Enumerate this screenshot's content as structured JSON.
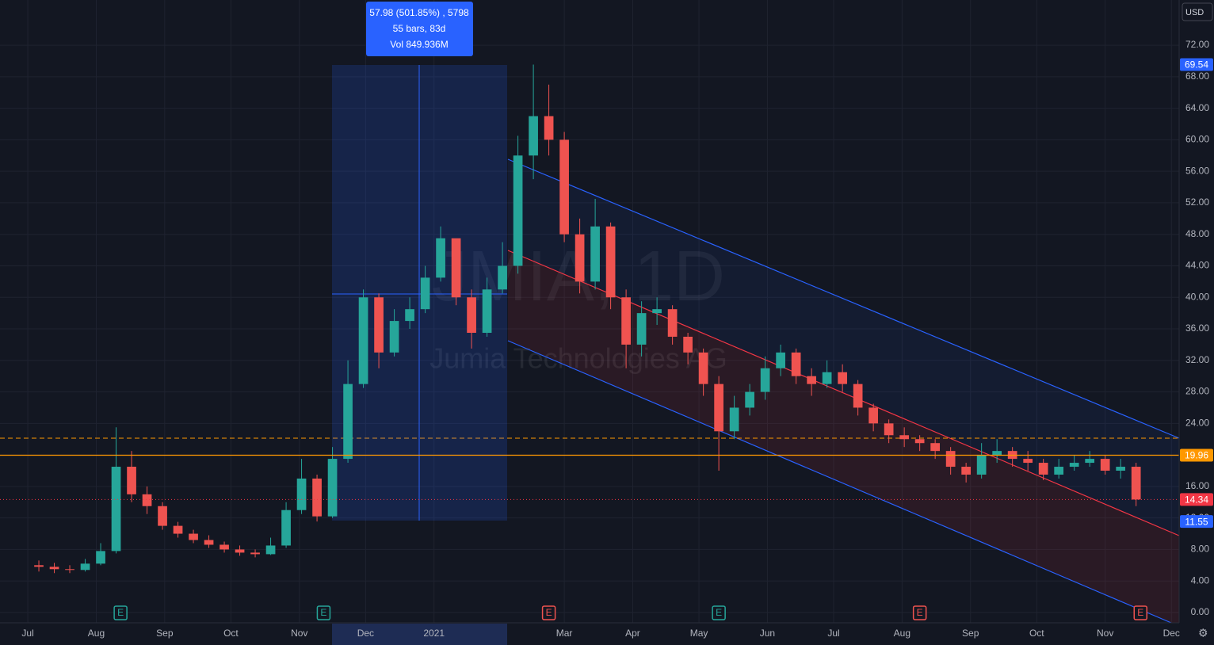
{
  "chart_data": {
    "type": "candlestick",
    "title": "JMIA, 1D",
    "subtitle": "Jumia Technologies AG",
    "currency": "USD",
    "x": [
      5,
      12,
      19,
      26,
      33,
      40,
      47,
      54,
      61,
      68,
      75,
      82,
      89,
      96,
      103,
      110,
      117,
      124,
      131,
      138,
      145,
      152,
      159,
      166,
      173,
      180,
      187,
      194,
      201,
      208,
      215,
      222,
      229,
      236,
      243,
      250,
      257,
      264,
      271,
      278,
      285,
      292,
      299,
      306,
      313,
      320,
      327,
      334,
      341,
      348,
      355,
      362,
      369,
      376,
      383,
      390,
      397,
      404,
      411,
      418,
      425,
      432,
      439,
      446,
      453,
      460,
      467,
      474,
      481,
      488,
      495,
      502
    ],
    "open": [
      6.0,
      5.8,
      5.5,
      5.4,
      6.2,
      7.8,
      18.5,
      15.0,
      13.5,
      11.0,
      10.0,
      9.2,
      8.6,
      8.0,
      7.6,
      7.4,
      8.5,
      13.0,
      17.0,
      12.2,
      19.5,
      29.0,
      40.0,
      33.0,
      37.0,
      38.5,
      42.5,
      47.5,
      40.0,
      35.5,
      41.0,
      44.0,
      58.0,
      63.0,
      60.0,
      48.0,
      42.0,
      49.0,
      40.0,
      34.0,
      38.0,
      38.5,
      35.0,
      33.0,
      29.0,
      23.0,
      26.0,
      28.0,
      31.0,
      33.0,
      30.0,
      29.0,
      30.5,
      29.0,
      26.0,
      24.0,
      22.5,
      22.0,
      21.5,
      20.5,
      18.5,
      17.5,
      20.0,
      20.5,
      19.5,
      19.0,
      17.5,
      18.5,
      19.0,
      19.5,
      18.0,
      18.5
    ],
    "high": [
      6.6,
      6.3,
      6.0,
      6.8,
      8.8,
      23.5,
      20.5,
      16.0,
      14.0,
      11.5,
      10.5,
      9.8,
      9.0,
      8.5,
      8.0,
      9.5,
      14.0,
      19.5,
      17.5,
      21.0,
      32.0,
      41.0,
      40.5,
      38.5,
      40.0,
      44.0,
      49.0,
      47.0,
      41.0,
      42.5,
      47.0,
      60.5,
      69.54,
      67.0,
      61.0,
      50.0,
      52.5,
      49.5,
      41.0,
      39.5,
      40.0,
      39.0,
      35.5,
      33.5,
      30.0,
      27.5,
      29.0,
      32.5,
      34.0,
      33.5,
      31.0,
      32.0,
      31.5,
      29.5,
      26.5,
      24.5,
      23.5,
      22.5,
      22.0,
      21.0,
      19.0,
      21.5,
      22.0,
      21.0,
      20.5,
      19.5,
      19.5,
      20.0,
      20.5,
      20.0,
      19.5,
      19.0
    ],
    "low": [
      5.2,
      5.0,
      5.0,
      5.2,
      6.0,
      7.5,
      14.0,
      12.5,
      10.5,
      9.5,
      8.8,
      8.2,
      7.6,
      7.2,
      7.0,
      7.3,
      8.2,
      12.5,
      11.55,
      12.0,
      19.0,
      28.5,
      31.0,
      32.5,
      36.0,
      38.0,
      42.0,
      39.0,
      33.5,
      35.0,
      40.5,
      43.0,
      55.0,
      58.0,
      47.0,
      40.5,
      41.0,
      38.5,
      31.0,
      32.5,
      36.5,
      34.0,
      31.5,
      27.5,
      18.0,
      22.0,
      25.0,
      27.0,
      30.0,
      29.0,
      27.5,
      28.5,
      28.0,
      25.0,
      23.0,
      21.5,
      21.0,
      20.5,
      19.5,
      17.5,
      16.5,
      17.0,
      19.0,
      18.5,
      18.0,
      16.8,
      17.0,
      18.0,
      18.5,
      17.5,
      17.0,
      13.5
    ],
    "close": [
      5.8,
      5.5,
      5.4,
      6.2,
      7.8,
      18.5,
      15.0,
      13.5,
      11.0,
      10.0,
      9.2,
      8.6,
      8.0,
      7.6,
      7.4,
      8.5,
      13.0,
      17.0,
      12.2,
      19.5,
      29.0,
      40.0,
      33.0,
      37.0,
      38.5,
      42.5,
      47.5,
      40.0,
      35.5,
      41.0,
      44.0,
      58.0,
      63.0,
      60.0,
      48.0,
      42.0,
      49.0,
      40.0,
      34.0,
      38.0,
      38.5,
      35.0,
      33.0,
      29.0,
      23.0,
      26.0,
      28.0,
      31.0,
      33.0,
      30.0,
      29.0,
      30.5,
      29.0,
      26.0,
      24.0,
      22.5,
      22.0,
      21.5,
      20.5,
      18.5,
      17.5,
      20.0,
      20.5,
      19.5,
      19.0,
      17.5,
      18.5,
      19.0,
      19.5,
      18.0,
      18.5,
      14.34
    ],
    "up_color": "#26a69a",
    "down_color": "#ef5350",
    "xlim": [
      -12.6,
      521.5
    ],
    "xticks": [
      {
        "value": 0,
        "label": "Jul"
      },
      {
        "value": 31,
        "label": "Aug"
      },
      {
        "value": 62,
        "label": "Sep"
      },
      {
        "value": 92,
        "label": "Oct"
      },
      {
        "value": 123,
        "label": "Nov"
      },
      {
        "value": 153,
        "label": "Dec"
      },
      {
        "value": 184,
        "label": "2021"
      },
      {
        "value": 243,
        "label": "Mar"
      },
      {
        "value": 274,
        "label": "Apr"
      },
      {
        "value": 304,
        "label": "May"
      },
      {
        "value": 335,
        "label": "Jun"
      },
      {
        "value": 365,
        "label": "Jul"
      },
      {
        "value": 396,
        "label": "Aug"
      },
      {
        "value": 427,
        "label": "Sep"
      },
      {
        "value": 457,
        "label": "Oct"
      },
      {
        "value": 488,
        "label": "Nov"
      },
      {
        "value": 518,
        "label": "Dec"
      }
    ],
    "ylim": [
      -1.31,
      77.74
    ],
    "yticks": [
      {
        "value": 0,
        "label": "0.00"
      },
      {
        "value": 4,
        "label": "4.00"
      },
      {
        "value": 8,
        "label": "8.00"
      },
      {
        "value": 12,
        "label": "12.00"
      },
      {
        "value": 16,
        "label": "16.00"
      },
      {
        "value": 20,
        "label": "20.00"
      },
      {
        "value": 24,
        "label": "24.00"
      },
      {
        "value": 28,
        "label": "28.00"
      },
      {
        "value": 32,
        "label": "32.00"
      },
      {
        "value": 36,
        "label": "36.00"
      },
      {
        "value": 40,
        "label": "40.00"
      },
      {
        "value": 44,
        "label": "44.00"
      },
      {
        "value": 48,
        "label": "48.00"
      },
      {
        "value": 52,
        "label": "52.00"
      },
      {
        "value": 56,
        "label": "56.00"
      },
      {
        "value": 60,
        "label": "60.00"
      },
      {
        "value": 64,
        "label": "64.00"
      },
      {
        "value": 68,
        "label": "68.00"
      },
      {
        "value": 72,
        "label": "72.00"
      }
    ],
    "price_labels": [
      {
        "value": 69.54,
        "color": "#2962ff"
      },
      {
        "value": 19.96,
        "color": "#ff9800"
      },
      {
        "value": 14.34,
        "color": "#f23645"
      },
      {
        "value": 11.55,
        "color": "#2962ff"
      }
    ],
    "measure": [
      "57.98 (501.85%) , 5798",
      "55 bars, 83d",
      "Vol 849.936M"
    ],
    "events": [
      {
        "x": 42,
        "label": "E",
        "color": "#26a69a"
      },
      {
        "x": 134,
        "label": "E",
        "color": "#26a69a"
      },
      {
        "x": 236,
        "label": "E",
        "color": "#ef5350"
      },
      {
        "x": 313,
        "label": "E",
        "color": "#26a69a"
      },
      {
        "x": 404,
        "label": "E",
        "color": "#ef5350"
      },
      {
        "x": 504,
        "label": "E",
        "color": "#ef5350"
      }
    ],
    "grid": true
  }
}
